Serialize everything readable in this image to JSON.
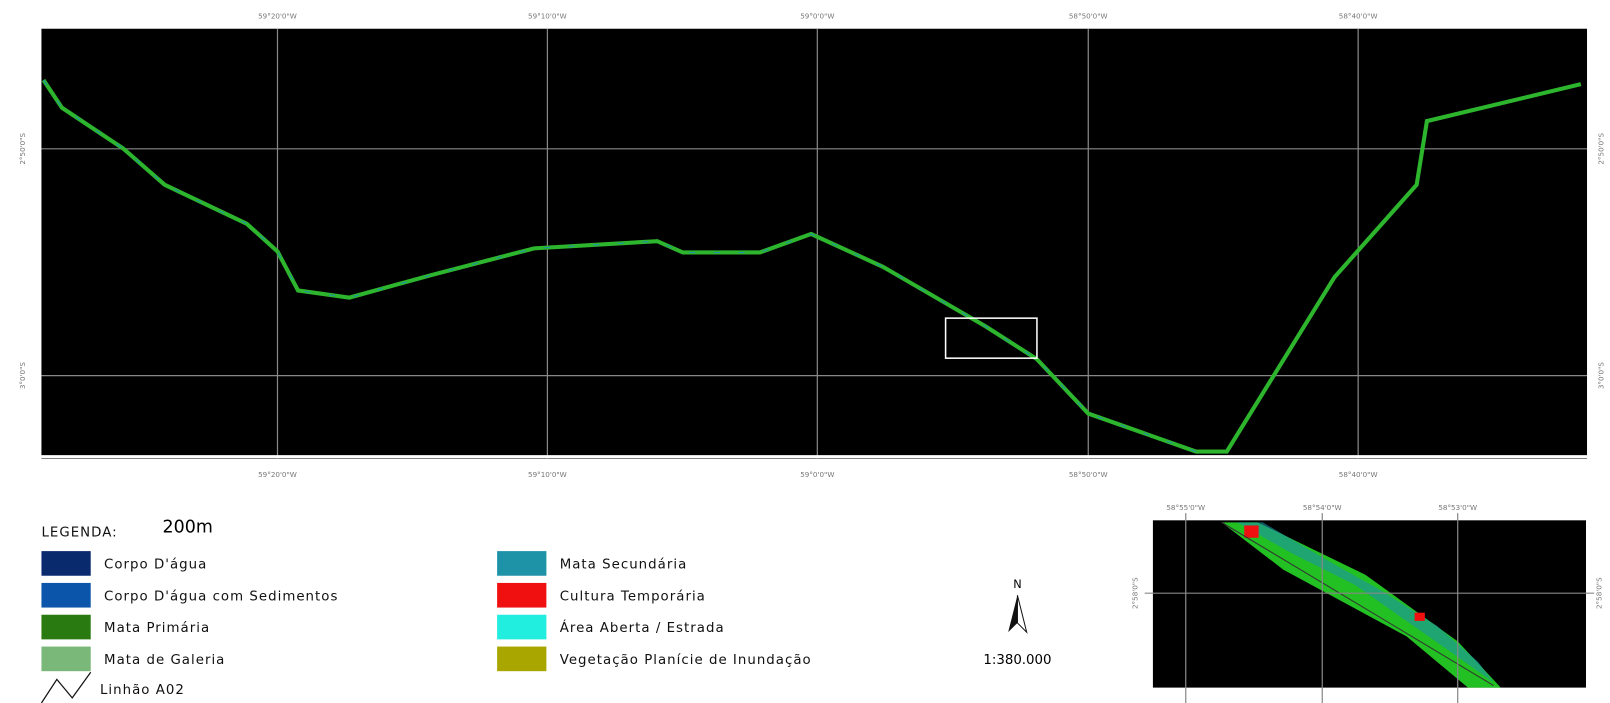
{
  "map": {
    "lon_labels": [
      "59°20'0\"W",
      "59°10'0\"W",
      "59°0'0\"W",
      "58°50'0\"W",
      "58°40'0\"W"
    ],
    "lat_labels": [
      "2°50'0\"S",
      "3°0'0\"S"
    ]
  },
  "legend": {
    "title": "LEGENDA:",
    "note": "200m",
    "items": [
      {
        "label": "Corpo D'água",
        "color": "#0a2a6e"
      },
      {
        "label": "Corpo D'água com Sedimentos",
        "color": "#0b55aa"
      },
      {
        "label": "Mata Primária",
        "color": "#2a7a12"
      },
      {
        "label": "Mata de Galeria",
        "color": "#7ab87a"
      },
      {
        "label": "Mata Secundária",
        "color": "#1e93a8"
      },
      {
        "label": "Cultura Temporária",
        "color": "#f01010"
      },
      {
        "label": "Área Aberta / Estrada",
        "color": "#22eee0"
      },
      {
        "label": "Vegetação Planície de Inundação",
        "color": "#aaa600"
      }
    ],
    "line_label": "Linhão A02"
  },
  "north": "N",
  "scale": "1:380.000",
  "inset": {
    "lon_labels": [
      "58°55'0\"W",
      "58°54'0\"W",
      "58°53'0\"W"
    ],
    "lat_label": "2°58'0\"S"
  }
}
